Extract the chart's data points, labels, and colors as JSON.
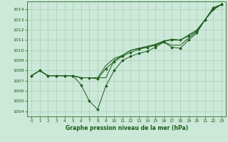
{
  "title": "Graphe pression niveau de la mer (hPa)",
  "background_color": "#cce8d8",
  "grid_color": "#aaccb8",
  "line_color": "#1a5c1a",
  "marker_color": "#1a5c1a",
  "xlim": [
    -0.5,
    23.5
  ],
  "ylim": [
    1003.5,
    1014.8
  ],
  "yticks": [
    1004,
    1005,
    1006,
    1007,
    1008,
    1009,
    1010,
    1011,
    1012,
    1013,
    1014
  ],
  "xticks": [
    0,
    1,
    2,
    3,
    4,
    5,
    6,
    7,
    8,
    9,
    10,
    11,
    12,
    13,
    14,
    15,
    16,
    17,
    18,
    19,
    20,
    21,
    22,
    23
  ],
  "series": [
    {
      "y": [
        1007.5,
        1008.0,
        1007.5,
        1007.5,
        1007.5,
        1007.5,
        1006.6,
        1005.0,
        1004.2,
        1006.5,
        1008.0,
        1009.0,
        1009.4,
        1009.7,
        1009.9,
        1010.3,
        1010.8,
        1010.3,
        1010.2,
        1011.0,
        1011.7,
        1013.0,
        1014.0,
        1014.5
      ],
      "marker": true,
      "style": "dotted"
    },
    {
      "y": [
        1007.5,
        1008.0,
        1007.5,
        1007.5,
        1007.5,
        1007.5,
        1007.3,
        1007.3,
        1007.3,
        1007.3,
        1009.0,
        1009.5,
        1010.0,
        1010.2,
        1010.3,
        1010.5,
        1010.8,
        1010.5,
        1010.5,
        1011.2,
        1011.8,
        1013.0,
        1014.0,
        1014.5
      ],
      "marker": false,
      "style": "solid"
    },
    {
      "y": [
        1007.5,
        1008.0,
        1007.5,
        1007.5,
        1007.5,
        1007.5,
        1007.3,
        1007.3,
        1007.3,
        1008.5,
        1009.2,
        1009.5,
        1010.0,
        1010.2,
        1010.4,
        1010.6,
        1010.9,
        1011.1,
        1011.0,
        1011.5,
        1012.0,
        1013.0,
        1014.1,
        1014.5
      ],
      "marker": false,
      "style": "solid"
    },
    {
      "y": [
        1007.5,
        1008.0,
        1007.5,
        1007.5,
        1007.5,
        1007.5,
        1007.3,
        1007.3,
        1007.2,
        1008.2,
        1008.9,
        1009.4,
        1009.8,
        1010.1,
        1010.3,
        1010.5,
        1010.9,
        1011.0,
        1011.0,
        1011.4,
        1011.9,
        1013.0,
        1014.2,
        1014.5
      ],
      "marker": true,
      "style": "solid"
    }
  ]
}
